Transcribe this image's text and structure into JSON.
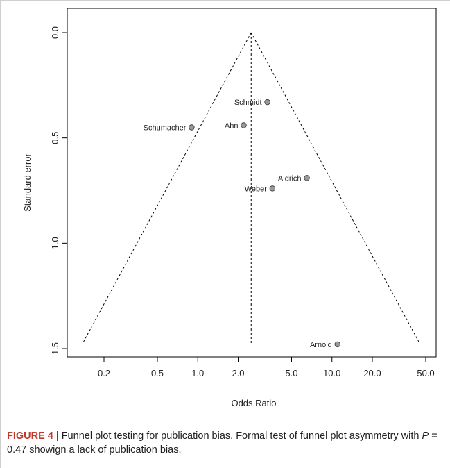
{
  "figure": {
    "caption_label": "FIGURE 4",
    "caption_sep": " | ",
    "caption_text_1": "Funnel plot testing for publication bias. Formal test of funnel plot asymmetry with ",
    "caption_p_symbol": "P",
    "caption_text_2": " = 0.47 showign a lack of publication bias."
  },
  "chart_data": {
    "type": "scatter",
    "xlabel": "Odds Ratio",
    "ylabel": "Standard error",
    "x_scale": "log",
    "y_reversed": true,
    "xlim": [
      0.13,
      60
    ],
    "ylim": [
      0.0,
      1.5
    ],
    "x_ticks": [
      0.2,
      0.5,
      1.0,
      2.0,
      5.0,
      10.0,
      20.0,
      50.0
    ],
    "x_tick_labels": [
      "0.2",
      "0.5",
      "1.0",
      "2.0",
      "5.0",
      "10.0",
      "20.0",
      "50.0"
    ],
    "y_ticks": [
      0.0,
      0.5,
      1.0,
      1.5
    ],
    "y_tick_labels": [
      "0.0",
      "0.5",
      "1.0",
      "1.5"
    ],
    "pooled_or": 2.5,
    "funnel_se_max": 1.48,
    "points": [
      {
        "label": "Schmidt",
        "or": 3.3,
        "se": 0.33
      },
      {
        "label": "Schumacher",
        "or": 0.9,
        "se": 0.45
      },
      {
        "label": "Ahn",
        "or": 2.2,
        "se": 0.44
      },
      {
        "label": "Aldrich",
        "or": 6.5,
        "se": 0.69
      },
      {
        "label": "Weber",
        "or": 3.6,
        "se": 0.74
      },
      {
        "label": "Arnold",
        "or": 11.0,
        "se": 1.48
      }
    ],
    "marker_color": "#999999",
    "line_color": "#000000",
    "grid": false
  }
}
